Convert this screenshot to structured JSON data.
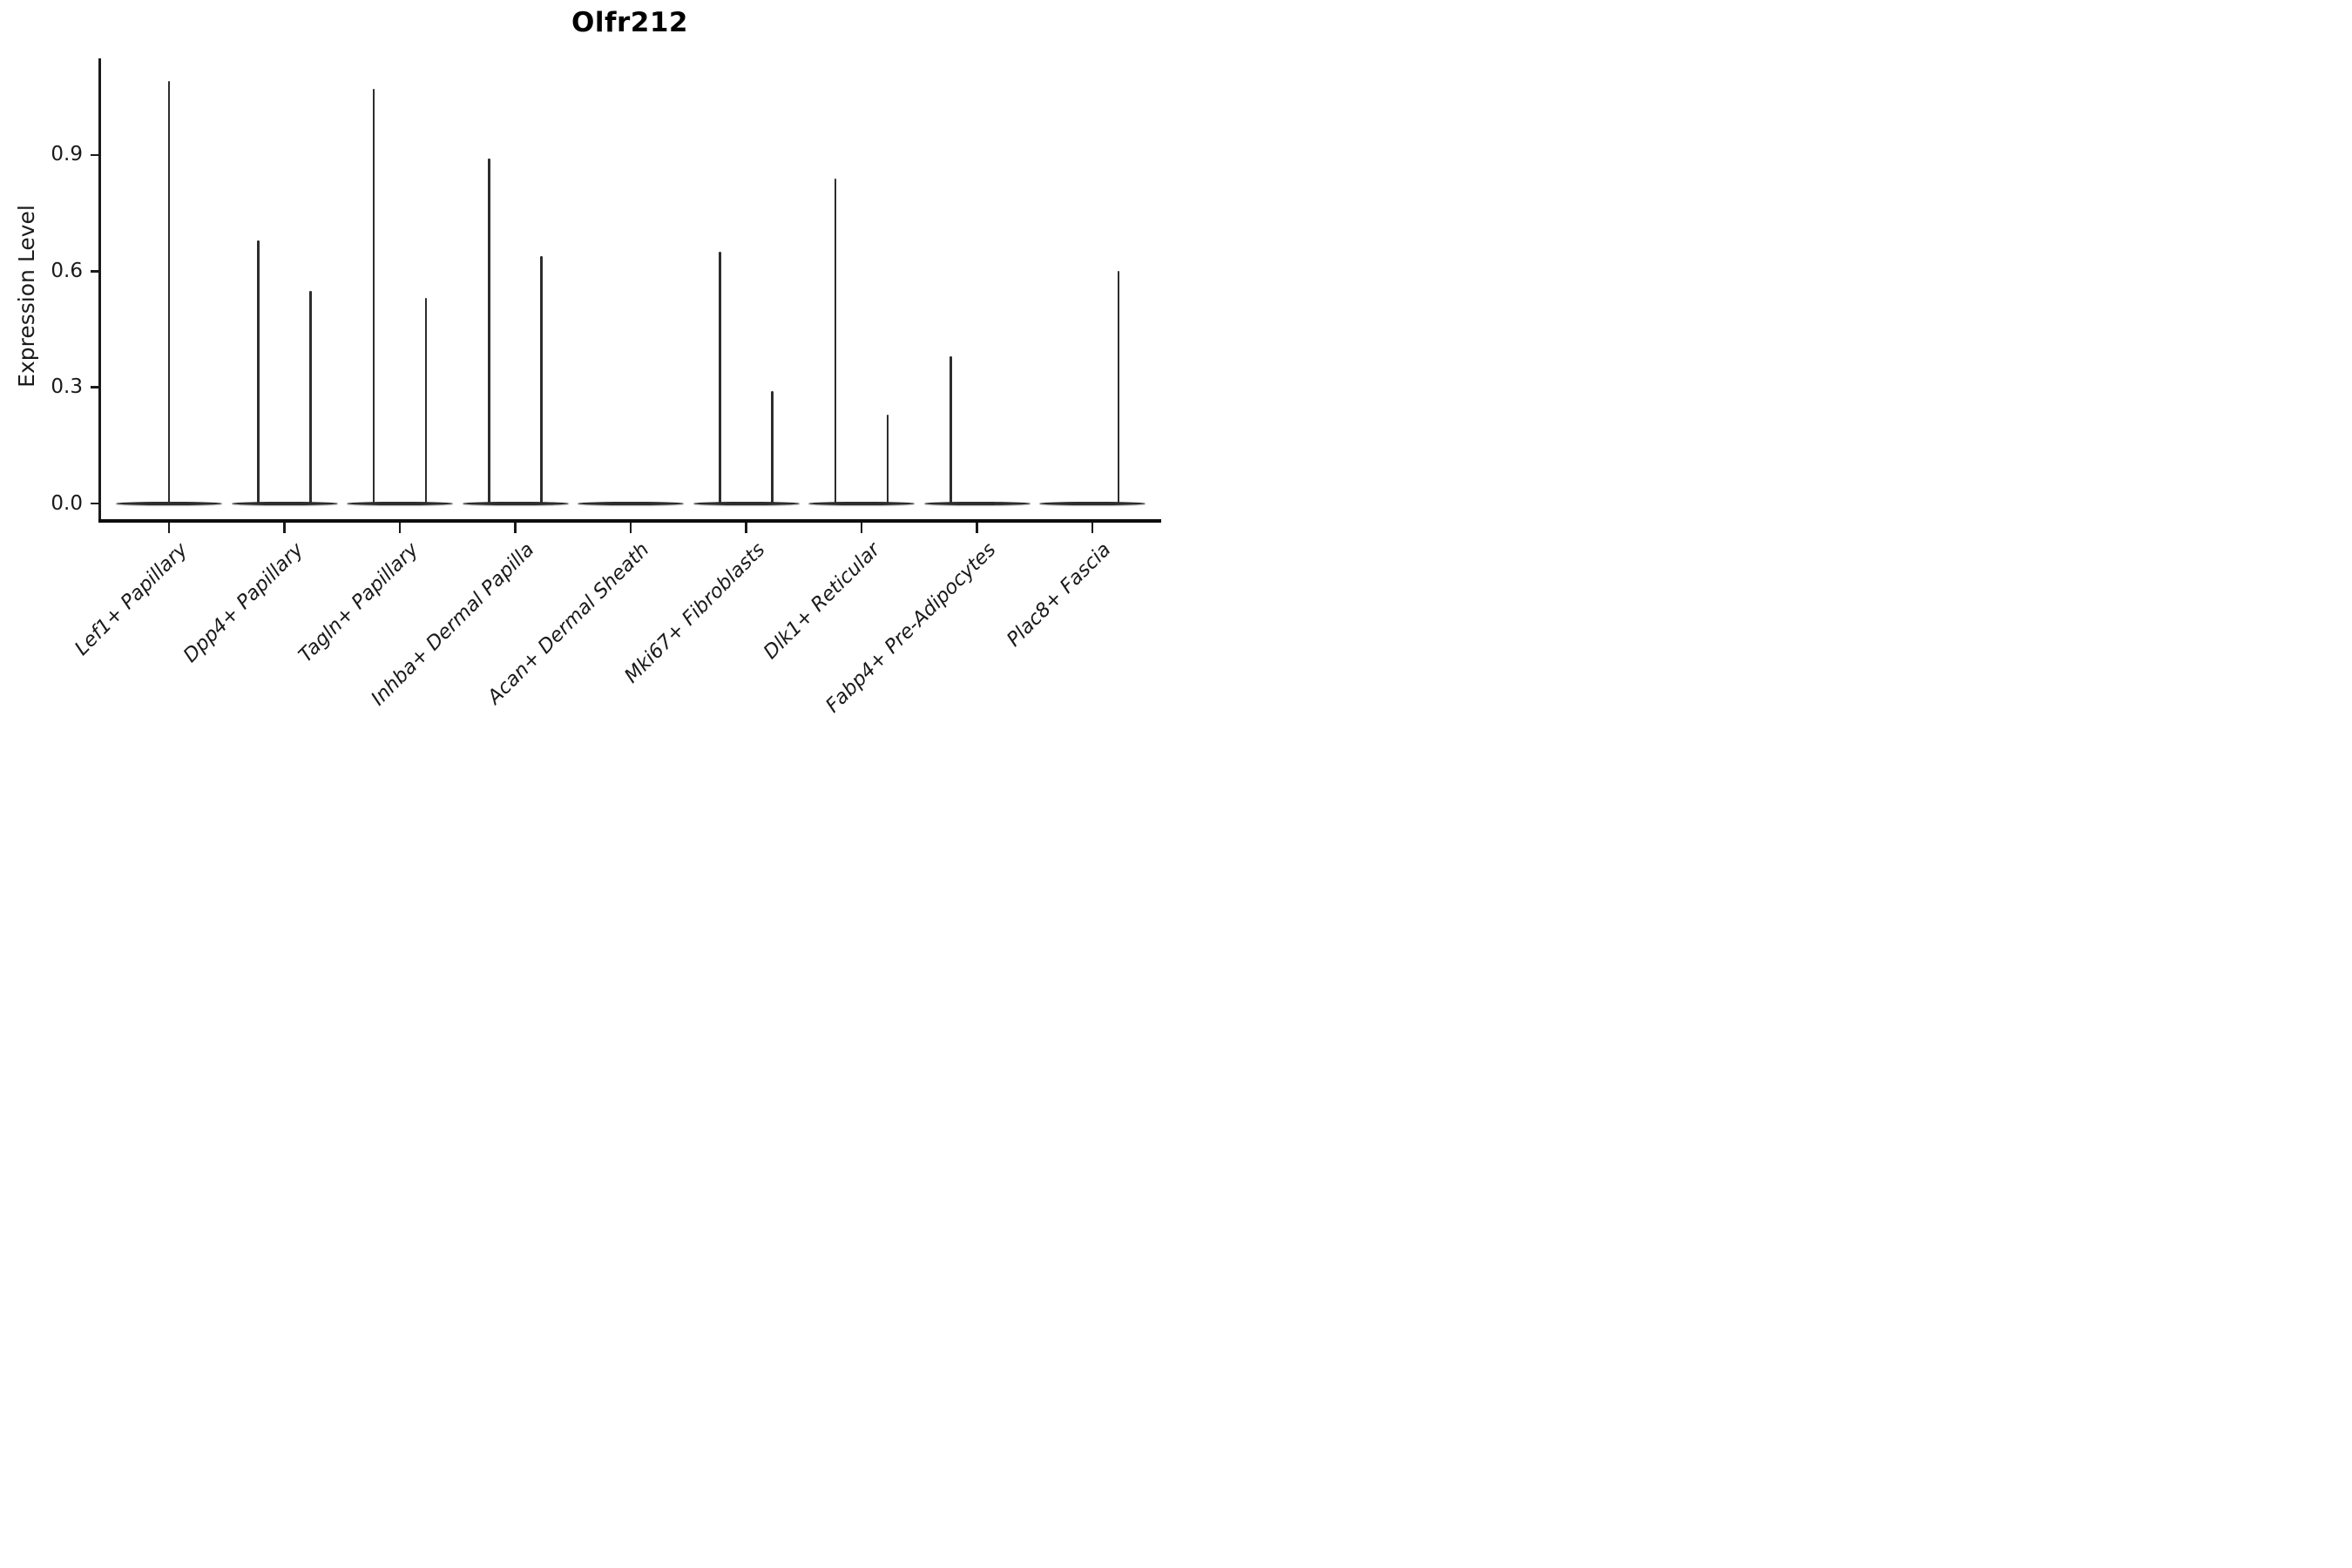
{
  "chart_data": {
    "type": "violin",
    "title": "Olfr212",
    "ylabel": "Expression Level",
    "xlabel": "",
    "ytick_labels": [
      "0.0",
      "0.3",
      "0.6",
      "0.9"
    ],
    "ytick_values": [
      0.0,
      0.3,
      0.6,
      0.9
    ],
    "ylim": [
      -0.045,
      1.15
    ],
    "grid": false,
    "legend": "none",
    "baseline_value": 0.0,
    "colors": {
      "line": "#2d2d2d",
      "axis": "#1a1a1a",
      "text": "#1a1a1a",
      "title": "#000000",
      "background": "#ffffff"
    },
    "categories": [
      {
        "label": "Lef1+ Papillary",
        "violins": [
          {
            "position": "center",
            "max": 1.09
          }
        ]
      },
      {
        "label": "Dpp4+ Papillary",
        "violins": [
          {
            "position": "left",
            "max": 0.68
          },
          {
            "position": "right",
            "max": 0.55
          }
        ]
      },
      {
        "label": "Tagln+ Papillary",
        "violins": [
          {
            "position": "left",
            "max": 1.07
          },
          {
            "position": "right",
            "max": 0.53
          }
        ]
      },
      {
        "label": "Inhba+ Dermal Papilla",
        "violins": [
          {
            "position": "left",
            "max": 0.89
          },
          {
            "position": "right",
            "max": 0.64
          }
        ]
      },
      {
        "label": "Acan+ Dermal Sheath",
        "violins": []
      },
      {
        "label": "Mki67+ Fibroblasts",
        "violins": [
          {
            "position": "left",
            "max": 0.65
          },
          {
            "position": "right",
            "max": 0.29
          }
        ]
      },
      {
        "label": "Dlk1+ Reticular",
        "violins": [
          {
            "position": "left",
            "max": 0.84
          },
          {
            "position": "right",
            "max": 0.23
          }
        ]
      },
      {
        "label": "Fabp4+ Pre-Adipocytes",
        "violins": [
          {
            "position": "left",
            "max": 0.38
          }
        ]
      },
      {
        "label": "Plac8+ Fascia",
        "violins": [
          {
            "position": "right",
            "max": 0.6
          }
        ]
      }
    ]
  }
}
